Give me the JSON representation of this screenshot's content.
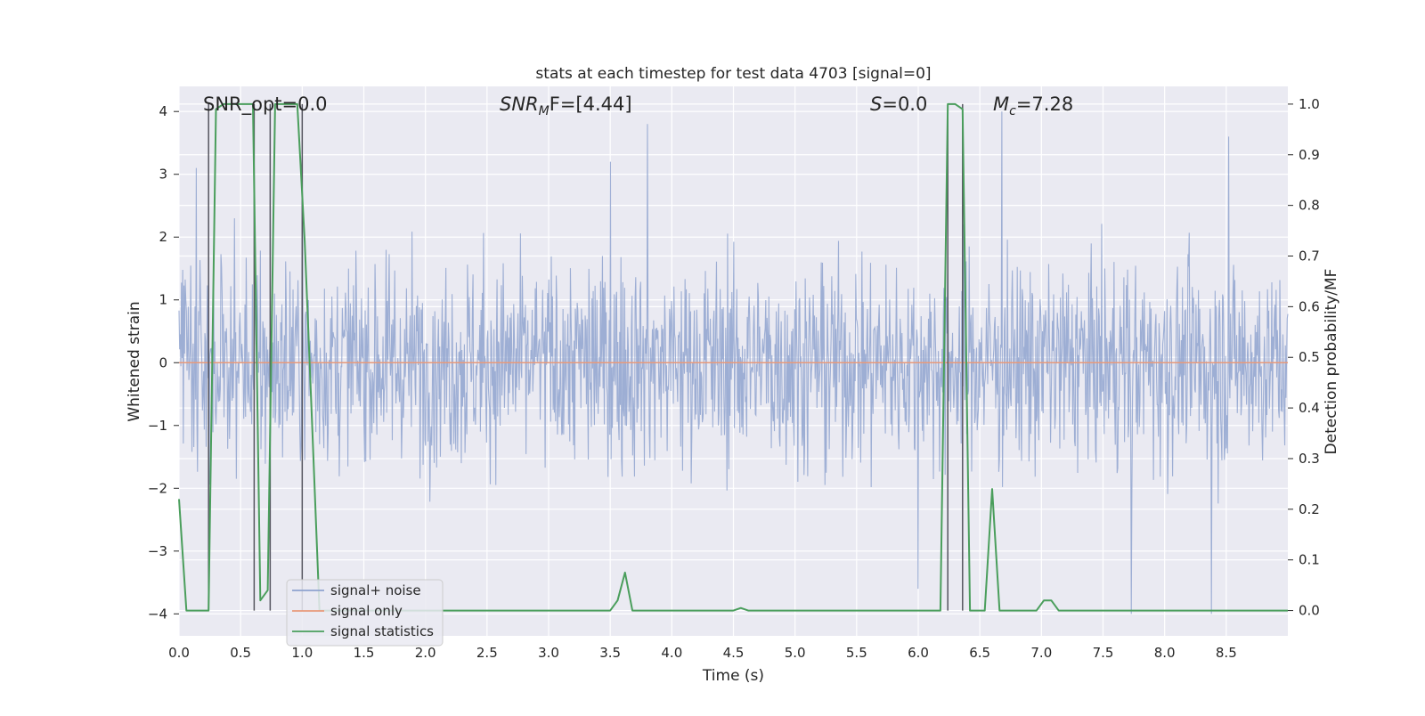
{
  "chart_data": {
    "type": "line",
    "title": "stats at each timestep for test data 4703 [signal=0]",
    "xlabel": "Time (s)",
    "ylabel_left": "Whitened strain",
    "ylabel_right": "Detection probability/MF",
    "xlim": [
      0.0,
      9.0
    ],
    "ylim_left": [
      -4.35,
      4.4
    ],
    "ylim_right": [
      -0.05,
      1.035
    ],
    "xticks": [
      0.0,
      0.5,
      1.0,
      1.5,
      2.0,
      2.5,
      3.0,
      3.5,
      4.0,
      4.5,
      5.0,
      5.5,
      6.0,
      6.5,
      7.0,
      7.5,
      8.0,
      8.5
    ],
    "xtick_labels": [
      "0.0",
      "0.5",
      "1.0",
      "1.5",
      "2.0",
      "2.5",
      "3.0",
      "3.5",
      "4.0",
      "4.5",
      "5.0",
      "5.5",
      "6.0",
      "6.5",
      "7.0",
      "7.5",
      "8.0",
      "8.5"
    ],
    "yticks_left": [
      -4,
      -3,
      -2,
      -1,
      0,
      1,
      2,
      3,
      4
    ],
    "ytick_labels_left": [
      "−4",
      "−3",
      "−2",
      "−1",
      "0",
      "1",
      "2",
      "3",
      "4"
    ],
    "yticks_right": [
      0.0,
      0.1,
      0.2,
      0.3,
      0.4,
      0.5,
      0.6,
      0.7,
      0.8,
      0.9,
      1.0
    ],
    "ytick_labels_right": [
      "0.0",
      "0.1",
      "0.2",
      "0.3",
      "0.4",
      "0.5",
      "0.6",
      "0.7",
      "0.8",
      "0.9",
      "1.0"
    ],
    "grid": true,
    "legend_placement": "lower-left",
    "annotations": {
      "snr_opt": "SNR_opt=0.0",
      "snr_mf_prefix": "SNR",
      "snr_mf_sub": "M",
      "snr_mf_suffix": "F=[4.44]",
      "s_prefix": "S",
      "s_suffix": "=0.0",
      "mc_prefix": "M",
      "mc_sub": "c",
      "mc_suffix": "=7.28"
    },
    "series": [
      {
        "name": "signal+ noise",
        "color": "#8fa3cf",
        "axis": "left",
        "note_style": "dense noise",
        "x_range": [
          0.0,
          9.0
        ],
        "notable_points": [
          [
            0.14,
            3.1
          ],
          [
            1.0,
            3.4
          ],
          [
            3.5,
            3.2
          ],
          [
            3.8,
            3.8
          ],
          [
            6.0,
            -3.6
          ],
          [
            6.68,
            4.0
          ],
          [
            7.73,
            -4.0
          ],
          [
            8.38,
            -4.0
          ],
          [
            8.52,
            3.6
          ]
        ]
      },
      {
        "name": "signal only",
        "color": "#e8997a",
        "axis": "left",
        "values_note": "zero",
        "x": [
          0.0,
          9.0
        ],
        "y": [
          0.0,
          0.0
        ]
      },
      {
        "name": "signal statistics",
        "color": "#4a9e5c",
        "axis": "right",
        "x": [
          0.0,
          0.06,
          0.12,
          0.18,
          0.24,
          0.3,
          0.36,
          0.42,
          0.48,
          0.54,
          0.6,
          0.66,
          0.72,
          0.78,
          0.84,
          0.9,
          0.96,
          1.02,
          1.08,
          1.14,
          1.2,
          1.26,
          1.32,
          1.38,
          1.44,
          1.5,
          2.0,
          2.5,
          3.0,
          3.5,
          3.56,
          3.62,
          3.68,
          3.74,
          4.0,
          4.5,
          4.56,
          4.62,
          5.0,
          5.5,
          6.0,
          6.18,
          6.24,
          6.3,
          6.36,
          6.42,
          6.48,
          6.54,
          6.6,
          6.66,
          6.72,
          6.78,
          6.84,
          6.9,
          6.96,
          7.02,
          7.08,
          7.14,
          7.2,
          7.5,
          8.0,
          8.5,
          8.94,
          9.0
        ],
        "y": [
          0.22,
          0.0,
          0.0,
          0.0,
          0.0,
          0.99,
          1.0,
          1.0,
          1.0,
          1.0,
          1.0,
          0.02,
          0.04,
          1.0,
          1.0,
          1.0,
          1.0,
          0.73,
          0.37,
          0.0,
          0.0,
          0.0,
          0.0,
          0.0,
          0.0,
          0.0,
          0.0,
          0.0,
          0.0,
          0.0,
          0.02,
          0.075,
          0.0,
          0.0,
          0.0,
          0.0,
          0.005,
          0.0,
          0.0,
          0.0,
          0.0,
          0.0,
          1.0,
          1.0,
          0.99,
          0.0,
          0.0,
          0.0,
          0.24,
          0.0,
          0.0,
          0.0,
          0.0,
          0.0,
          0.0,
          0.02,
          0.02,
          0.0,
          0.0,
          0.0,
          0.0,
          0.0,
          0.0,
          0.0
        ]
      },
      {
        "name": "",
        "color": "#55555f",
        "axis": "right",
        "style": "vertical markers",
        "x": [
          0.24,
          0.61,
          0.74,
          1.0,
          6.24,
          6.36
        ],
        "y_top": [
          1.0,
          1.0,
          1.0,
          1.0,
          1.0,
          1.0
        ],
        "y_bottom": [
          0.0,
          0.0,
          0.0,
          0.0,
          0.0,
          0.0
        ]
      }
    ]
  }
}
